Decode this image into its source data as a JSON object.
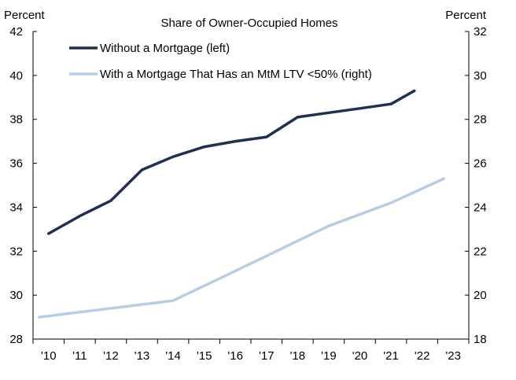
{
  "chart_data": {
    "type": "line",
    "title": "Share of Owner-Occupied Homes",
    "left_axis": {
      "unit_label": "Percent",
      "ylim": [
        28,
        42
      ],
      "ticks": [
        28,
        30,
        32,
        34,
        36,
        38,
        40,
        42
      ]
    },
    "right_axis": {
      "unit_label": "Percent",
      "ylim": [
        18,
        32
      ],
      "ticks": [
        18,
        20,
        22,
        24,
        26,
        28,
        30,
        32
      ]
    },
    "categories": [
      "'10",
      "'11",
      "'12",
      "'13",
      "'14",
      "'15",
      "'16",
      "'17",
      "'18",
      "'19",
      "'20",
      "'21",
      "'22",
      "'23"
    ],
    "grid": false,
    "legend_position": "top-left",
    "series": [
      {
        "name": "Without a Mortgage (left)",
        "axis": "left",
        "color": "#1f3050",
        "points": [
          {
            "x": 2010.0,
            "y": 32.8
          },
          {
            "x": 2011.0,
            "y": 33.6
          },
          {
            "x": 2012.0,
            "y": 34.3
          },
          {
            "x": 2013.0,
            "y": 35.7
          },
          {
            "x": 2014.0,
            "y": 36.3
          },
          {
            "x": 2015.0,
            "y": 36.75
          },
          {
            "x": 2016.0,
            "y": 37.0
          },
          {
            "x": 2017.0,
            "y": 37.2
          },
          {
            "x": 2018.0,
            "y": 38.1
          },
          {
            "x": 2019.0,
            "y": 38.3
          },
          {
            "x": 2020.0,
            "y": 38.5
          },
          {
            "x": 2021.0,
            "y": 38.7
          },
          {
            "x": 2021.75,
            "y": 39.3
          }
        ]
      },
      {
        "name": "With a Mortgage That Has an MtM LTV <50% (right)",
        "axis": "right",
        "color": "#b7cde6",
        "points": [
          {
            "x": 2009.7,
            "y": 19.0
          },
          {
            "x": 2014.0,
            "y": 19.75
          },
          {
            "x": 2016.0,
            "y": 21.1
          },
          {
            "x": 2019.0,
            "y": 23.15
          },
          {
            "x": 2021.0,
            "y": 24.2
          },
          {
            "x": 2022.7,
            "y": 25.3
          }
        ]
      }
    ]
  }
}
